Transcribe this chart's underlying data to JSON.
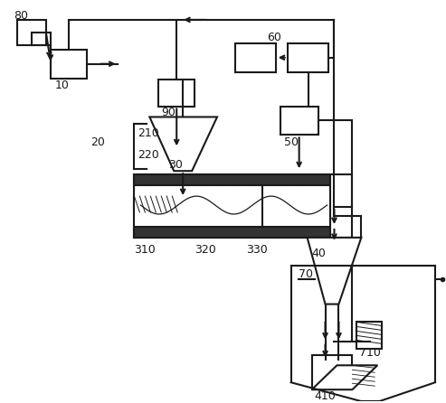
{
  "background_color": "#ffffff",
  "line_color": "#1a1a1a",
  "label_color": "#1a1a1a",
  "figsize": [
    4.93,
    4.46
  ],
  "dpi": 100,
  "lw": 1.5
}
